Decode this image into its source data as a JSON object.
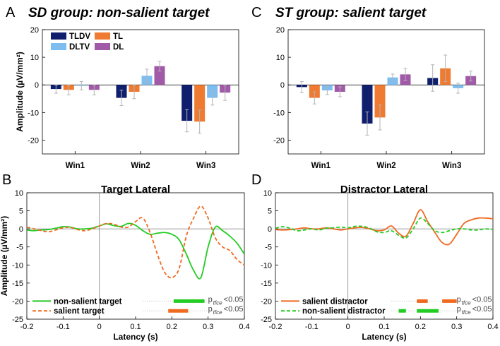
{
  "chart_data": [
    {
      "panel": "A",
      "type": "bar",
      "title": "SD group: non-salient target",
      "ylabel": "Amplitude (µV/mm²)",
      "ylim": [
        -25,
        20
      ],
      "yticks": [
        20,
        10,
        0,
        -10,
        -20
      ],
      "categories": [
        "Win1",
        "Win2",
        "Win3"
      ],
      "series": [
        {
          "name": "TLDV",
          "color": "#0f1f6e",
          "values": [
            -1.5,
            -4.7,
            -13.0
          ],
          "errors": [
            1.5,
            2.8,
            4.0
          ]
        },
        {
          "name": "TL",
          "color": "#ef7a32",
          "values": [
            -1.8,
            -2.5,
            -13.3
          ],
          "errors": [
            1.8,
            2.5,
            4.2
          ]
        },
        {
          "name": "DLTV",
          "color": "#7ebdf0",
          "values": [
            -0.3,
            3.3,
            -4.7
          ],
          "errors": [
            1.5,
            2.4,
            2.6
          ]
        },
        {
          "name": "DL",
          "color": "#a05aa8",
          "values": [
            -1.8,
            6.8,
            -2.8
          ],
          "errors": [
            1.8,
            1.8,
            2.8
          ]
        }
      ]
    },
    {
      "panel": "C",
      "type": "bar",
      "title": "ST group: salient target",
      "ylim": [
        -25,
        20
      ],
      "yticks": [
        20,
        10,
        0,
        -10,
        -20
      ],
      "categories": [
        "Win1",
        "Win2",
        "Win3"
      ],
      "series": [
        {
          "name": "TLDV",
          "color": "#0f1f6e",
          "values": [
            -0.8,
            -14.0,
            2.5
          ],
          "errors": [
            2.0,
            4.2,
            4.8
          ]
        },
        {
          "name": "TL",
          "color": "#ef7a32",
          "values": [
            -4.7,
            -11.8,
            6.0
          ],
          "errors": [
            2.2,
            4.5,
            4.8
          ]
        },
        {
          "name": "DLTV",
          "color": "#7ebdf0",
          "values": [
            -2.0,
            2.7,
            -1.2
          ],
          "errors": [
            1.5,
            1.2,
            1.8
          ]
        },
        {
          "name": "DL",
          "color": "#a05aa8",
          "values": [
            -2.5,
            3.8,
            3.2
          ],
          "errors": [
            1.8,
            2.2,
            1.8
          ]
        }
      ]
    },
    {
      "panel": "B",
      "type": "line",
      "title": "Target Lateral",
      "xlabel": "Latency (s)",
      "ylabel": "Amplitude (µV/mm²)",
      "xlim": [
        -0.2,
        0.4
      ],
      "ylim": [
        -25,
        10
      ],
      "xticks": [
        -0.2,
        -0.1,
        0,
        0.1,
        0.2,
        0.3,
        0.4
      ],
      "xtick_labels": [
        "-0.2",
        "-0.1",
        "0",
        "0.1",
        "0.2",
        "0.3",
        "0.4"
      ],
      "yticks": [
        10,
        5,
        0,
        -5,
        -10,
        -15,
        -20,
        -25
      ],
      "x": [
        -0.2,
        -0.18,
        -0.16,
        -0.14,
        -0.12,
        -0.1,
        -0.08,
        -0.06,
        -0.04,
        -0.02,
        0.0,
        0.02,
        0.04,
        0.06,
        0.08,
        0.1,
        0.12,
        0.14,
        0.16,
        0.18,
        0.2,
        0.22,
        0.24,
        0.26,
        0.28,
        0.3,
        0.32,
        0.34,
        0.36,
        0.38,
        0.4
      ],
      "series": [
        {
          "name": "non-salient target",
          "color": "#22cc22",
          "dash": "solid",
          "values": [
            -0.3,
            -0.5,
            -0.3,
            -0.2,
            0.2,
            0.6,
            0.5,
            0.0,
            0.0,
            0.2,
            0.8,
            1.4,
            0.9,
            0.7,
            1.5,
            1.0,
            -0.5,
            -1.5,
            -1.2,
            -1.0,
            -1.5,
            -3.0,
            -7.0,
            -11.5,
            -13.5,
            -5.0,
            0.5,
            -0.5,
            -2.0,
            -4.0,
            -7.0
          ]
        },
        {
          "name": "salient target",
          "color": "#ef6a1f",
          "dash": "dashed",
          "values": [
            0.5,
            0.0,
            -0.5,
            -0.8,
            -0.3,
            0.3,
            0.4,
            -0.2,
            -0.5,
            0.0,
            0.8,
            1.5,
            1.3,
            0.5,
            0.5,
            2.0,
            3.0,
            -1.0,
            -7.0,
            -12.0,
            -13.5,
            -11.0,
            -2.0,
            3.0,
            6.3,
            3.0,
            -2.5,
            -5.0,
            -6.0,
            -8.5,
            -10.0
          ]
        }
      ],
      "legend": [
        {
          "label": "non-salient target",
          "color": "#22cc22",
          "dash": "solid"
        },
        {
          "label": "salient target",
          "color": "#ef6a1f",
          "dash": "dashed"
        }
      ],
      "significance": [
        {
          "color": "#22cc22",
          "label": "p",
          "sub": "tfce",
          "suffix": "<0.05",
          "intervals": [
            [
              0.205,
              0.29
            ]
          ]
        },
        {
          "color": "#ef6a1f",
          "label": "p",
          "sub": "tfce",
          "suffix": "<0.05",
          "intervals": [
            [
              0.19,
              0.245
            ]
          ]
        }
      ]
    },
    {
      "panel": "D",
      "type": "line",
      "title": "Distractor Lateral",
      "xlabel": "Latency (s)",
      "xlim": [
        -0.2,
        0.4
      ],
      "ylim": [
        -25,
        10
      ],
      "xticks": [
        -0.2,
        -0.1,
        0,
        0.1,
        0.2,
        0.3,
        0.4
      ],
      "xtick_labels": [
        "-0.2",
        "-0.1",
        "0",
        "0.1",
        "0.2",
        "0.3",
        "0.4"
      ],
      "yticks": [
        10,
        5,
        0,
        -5,
        -10,
        -15,
        -20,
        -25
      ],
      "x": [
        -0.2,
        -0.18,
        -0.16,
        -0.14,
        -0.12,
        -0.1,
        -0.08,
        -0.06,
        -0.04,
        -0.02,
        0.0,
        0.02,
        0.04,
        0.06,
        0.08,
        0.1,
        0.12,
        0.14,
        0.16,
        0.18,
        0.2,
        0.22,
        0.24,
        0.26,
        0.28,
        0.3,
        0.32,
        0.34,
        0.36,
        0.38,
        0.4
      ],
      "series": [
        {
          "name": "salient distractor",
          "color": "#ef6a1f",
          "dash": "solid",
          "values": [
            -0.2,
            -0.3,
            -0.2,
            0.0,
            0.3,
            0.0,
            0.0,
            0.3,
            0.0,
            -0.3,
            0.0,
            0.3,
            0.4,
            0.0,
            -0.5,
            -0.3,
            0.8,
            -1.2,
            -2.0,
            1.5,
            5.3,
            2.0,
            -1.0,
            -3.8,
            -4.2,
            -1.5,
            1.5,
            2.5,
            3.0,
            3.0,
            2.8
          ]
        },
        {
          "name": "non-salient distractor",
          "color": "#22cc22",
          "dash": "dashed",
          "values": [
            0.2,
            0.6,
            0.2,
            -0.5,
            -0.3,
            0.0,
            -0.3,
            0.2,
            0.3,
            0.5,
            0.3,
            0.7,
            0.7,
            0.2,
            -0.8,
            -1.0,
            -0.5,
            -1.8,
            -2.5,
            0.0,
            3.0,
            1.5,
            -0.5,
            -1.0,
            -0.5,
            0.0,
            0.0,
            -0.3,
            -0.3,
            0.0,
            -0.2
          ]
        }
      ],
      "legend": [
        {
          "label": "salient distractor",
          "color": "#ef6a1f",
          "dash": "solid"
        },
        {
          "label": "non-salient distractor",
          "color": "#22cc22",
          "dash": "dashed"
        }
      ],
      "significance": [
        {
          "color": "#ef6a1f",
          "label": "p",
          "sub": "tfce",
          "suffix": "<0.05",
          "intervals": [
            [
              0.19,
              0.22
            ],
            [
              0.26,
              0.3
            ]
          ]
        },
        {
          "color": "#22cc22",
          "label": "p",
          "sub": "tfce",
          "suffix": "<0.05",
          "intervals": [
            [
              0.14,
              0.16
            ],
            [
              0.19,
              0.25
            ]
          ]
        }
      ]
    }
  ]
}
